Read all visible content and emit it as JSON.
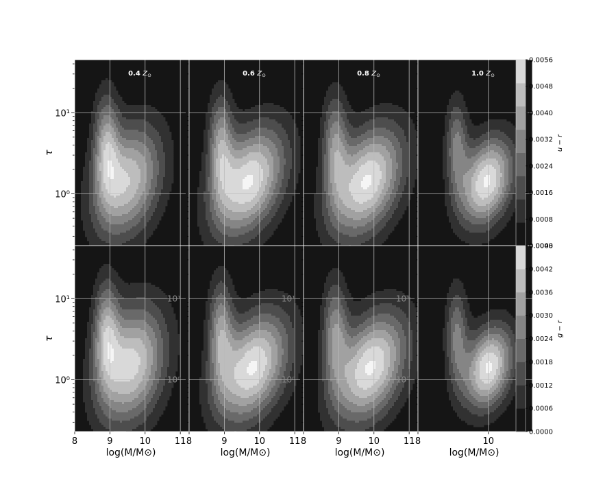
{
  "chart_data": {
    "type": "heatmap",
    "description_free": true,
    "columns": [
      {
        "metallicity_label": "0.4",
        "x_ticks": [
          "8",
          "9",
          "10",
          "11"
        ],
        "x_tick_values": [
          8,
          9,
          10,
          11
        ]
      },
      {
        "metallicity_label": "0.6",
        "x_ticks": [
          "8",
          "9",
          "10",
          "11"
        ],
        "x_tick_values": [
          8,
          9,
          10,
          11
        ]
      },
      {
        "metallicity_label": "0.8",
        "x_ticks": [
          "8",
          "9",
          "10",
          "11"
        ],
        "x_tick_values": [
          8,
          9,
          10,
          11
        ]
      },
      {
        "metallicity_label": "1.0",
        "x_ticks": [
          "8",
          "10"
        ],
        "x_tick_values": [
          8,
          10
        ]
      }
    ],
    "zsun_symbol": "Z",
    "zsun_subscript": "⊙",
    "rows": [
      {
        "color_label": "u − r",
        "cbar_ticks": [
          "0.0000",
          "0.0008",
          "0.0016",
          "0.0024",
          "0.0032",
          "0.0040",
          "0.0048",
          "0.0056"
        ],
        "cbar_max": 0.0056,
        "levels": 8
      },
      {
        "color_label": "g − r",
        "cbar_ticks": [
          "0.0000",
          "0.0006",
          "0.0012",
          "0.0018",
          "0.0024",
          "0.0030",
          "0.0036",
          "0.0042",
          "0.0048"
        ],
        "cbar_max": 0.0048,
        "levels": 8
      }
    ],
    "xlabel": "log(M/M⊙)",
    "ylabel": "τ",
    "y_scale": "log",
    "ylim": [
      0.23,
      45
    ],
    "y_ticks": [
      {
        "value": 1,
        "label": "10⁰"
      },
      {
        "value": 10,
        "label": "10¹"
      }
    ],
    "xlim": [
      8,
      11.25
    ],
    "grid": true,
    "panels": [
      {
        "row": 0,
        "col": 0,
        "peaks": [
          {
            "x": 9.5,
            "logy": 0.15,
            "sx": 0.7,
            "sy": 0.45,
            "w": 1.0,
            "rot": -0.35
          },
          {
            "x": 8.9,
            "logy": 0.6,
            "sx": 0.25,
            "sy": 0.45,
            "w": 0.7,
            "rot": 0
          }
        ]
      },
      {
        "row": 0,
        "col": 1,
        "peaks": [
          {
            "x": 9.7,
            "logy": 0.15,
            "sx": 0.75,
            "sy": 0.42,
            "w": 1.0,
            "rot": -0.35
          },
          {
            "x": 8.9,
            "logy": 0.6,
            "sx": 0.25,
            "sy": 0.45,
            "w": 0.6,
            "rot": 0
          }
        ]
      },
      {
        "row": 0,
        "col": 2,
        "peaks": [
          {
            "x": 9.8,
            "logy": 0.15,
            "sx": 0.75,
            "sy": 0.42,
            "w": 1.0,
            "rot": -0.35
          },
          {
            "x": 8.9,
            "logy": 0.6,
            "sx": 0.25,
            "sy": 0.45,
            "w": 0.55,
            "rot": 0
          }
        ]
      },
      {
        "row": 0,
        "col": 3,
        "peaks": [
          {
            "x": 9.95,
            "logy": 0.15,
            "sx": 0.55,
            "sy": 0.35,
            "w": 1.0,
            "rot": -0.35
          },
          {
            "x": 9.1,
            "logy": 0.6,
            "sx": 0.22,
            "sy": 0.4,
            "w": 0.5,
            "rot": 0
          }
        ]
      },
      {
        "row": 1,
        "col": 0,
        "peaks": [
          {
            "x": 9.6,
            "logy": 0.18,
            "sx": 0.7,
            "sy": 0.48,
            "w": 1.0,
            "rot": -0.35
          },
          {
            "x": 8.9,
            "logy": 0.6,
            "sx": 0.25,
            "sy": 0.45,
            "w": 0.65,
            "rot": 0
          }
        ]
      },
      {
        "row": 1,
        "col": 1,
        "peaks": [
          {
            "x": 9.8,
            "logy": 0.15,
            "sx": 0.75,
            "sy": 0.42,
            "w": 1.0,
            "rot": -0.35
          },
          {
            "x": 8.9,
            "logy": 0.6,
            "sx": 0.25,
            "sy": 0.45,
            "w": 0.6,
            "rot": 0
          }
        ]
      },
      {
        "row": 1,
        "col": 2,
        "peaks": [
          {
            "x": 9.9,
            "logy": 0.15,
            "sx": 0.75,
            "sy": 0.42,
            "w": 1.0,
            "rot": -0.35
          },
          {
            "x": 8.9,
            "logy": 0.6,
            "sx": 0.25,
            "sy": 0.45,
            "w": 0.55,
            "rot": 0
          }
        ]
      },
      {
        "row": 1,
        "col": 3,
        "peaks": [
          {
            "x": 10.0,
            "logy": 0.15,
            "sx": 0.5,
            "sy": 0.33,
            "w": 1.0,
            "rot": -0.35
          },
          {
            "x": 9.1,
            "logy": 0.55,
            "sx": 0.22,
            "sy": 0.42,
            "w": 0.5,
            "rot": 0
          }
        ]
      }
    ],
    "colors": {
      "background": "#151515",
      "grid": "#bbbbbb",
      "max": "#f5f5f5"
    }
  }
}
